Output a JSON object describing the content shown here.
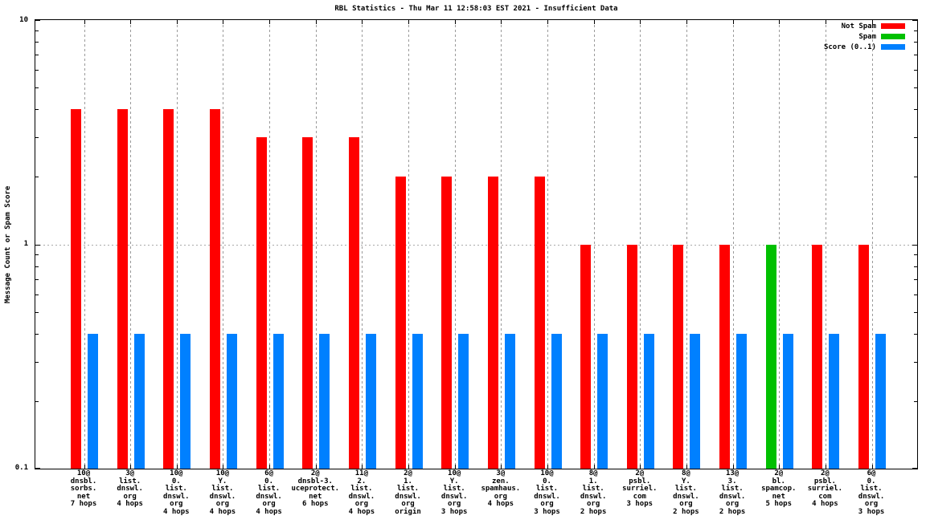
{
  "chart_data": {
    "type": "bar",
    "title": "RBL Statistics - Thu Mar 11 12:58:03 EST 2021 - Insufficient Data",
    "ylabel": "Message Count or Spam Score",
    "xlabel": "",
    "yscale": "log",
    "ylim": [
      0.1,
      10
    ],
    "ytick_labels": [
      "10",
      "1",
      "0.1"
    ],
    "grid": {
      "vertical": "dashed-at-each-group",
      "horizontal": "dotted-at-1"
    },
    "legend_position": "top-right-inside",
    "legend": [
      {
        "label": "Not Spam",
        "color": "#ff0000"
      },
      {
        "label": "Spam",
        "color": "#00c000"
      },
      {
        "label": "Score (0..1)",
        "color": "#0080ff"
      }
    ],
    "groups": [
      {
        "label_lines": [
          "10@",
          "dnsbl.",
          "sorbs.",
          "net",
          "7 hops"
        ],
        "not_spam": 4,
        "spam": 0,
        "score": 0.4
      },
      {
        "label_lines": [
          "3@",
          "list.",
          "dnswl.",
          "org",
          "4 hops"
        ],
        "not_spam": 4,
        "spam": 0,
        "score": 0.4
      },
      {
        "label_lines": [
          "10@",
          "0.",
          "list.",
          "dnswl.",
          "org",
          "4 hops"
        ],
        "not_spam": 4,
        "spam": 0,
        "score": 0.4
      },
      {
        "label_lines": [
          "10@",
          "Y.",
          "list.",
          "dnswl.",
          "org",
          "4 hops"
        ],
        "not_spam": 4,
        "spam": 0,
        "score": 0.4
      },
      {
        "label_lines": [
          "6@",
          "0.",
          "list.",
          "dnswl.",
          "org",
          "4 hops"
        ],
        "not_spam": 3,
        "spam": 0,
        "score": 0.4
      },
      {
        "label_lines": [
          "2@",
          "dnsbl-3.",
          "uceprotect.",
          "net",
          "6 hops"
        ],
        "not_spam": 3,
        "spam": 0,
        "score": 0.4
      },
      {
        "label_lines": [
          "11@",
          "2.",
          "list.",
          "dnswl.",
          "org",
          "4 hops"
        ],
        "not_spam": 3,
        "spam": 0,
        "score": 0.4
      },
      {
        "label_lines": [
          "2@",
          "1.",
          "list.",
          "dnswl.",
          "org",
          "origin"
        ],
        "not_spam": 2,
        "spam": 0,
        "score": 0.4
      },
      {
        "label_lines": [
          "10@",
          "Y.",
          "list.",
          "dnswl.",
          "org",
          "3 hops"
        ],
        "not_spam": 2,
        "spam": 0,
        "score": 0.4
      },
      {
        "label_lines": [
          "3@",
          "zen.",
          "spamhaus.",
          "org",
          "4 hops"
        ],
        "not_spam": 2,
        "spam": 0,
        "score": 0.4
      },
      {
        "label_lines": [
          "10@",
          "0.",
          "list.",
          "dnswl.",
          "org",
          "3 hops"
        ],
        "not_spam": 2,
        "spam": 0,
        "score": 0.4
      },
      {
        "label_lines": [
          "8@",
          "1.",
          "list.",
          "dnswl.",
          "org",
          "2 hops"
        ],
        "not_spam": 1,
        "spam": 0,
        "score": 0.4
      },
      {
        "label_lines": [
          "2@",
          "psbl.",
          "surriel.",
          "com",
          "3 hops"
        ],
        "not_spam": 1,
        "spam": 0,
        "score": 0.4
      },
      {
        "label_lines": [
          "8@",
          "Y.",
          "list.",
          "dnswl.",
          "org",
          "2 hops"
        ],
        "not_spam": 1,
        "spam": 0,
        "score": 0.4
      },
      {
        "label_lines": [
          "13@",
          "3.",
          "list.",
          "dnswl.",
          "org",
          "2 hops"
        ],
        "not_spam": 1,
        "spam": 0,
        "score": 0.4
      },
      {
        "label_lines": [
          "2@",
          "bl.",
          "spamcop.",
          "net",
          "5 hops"
        ],
        "not_spam": 0,
        "spam": 1,
        "score": 0.4
      },
      {
        "label_lines": [
          "2@",
          "psbl.",
          "surriel.",
          "com",
          "4 hops"
        ],
        "not_spam": 1,
        "spam": 0,
        "score": 0.4
      },
      {
        "label_lines": [
          "6@",
          "0.",
          "list.",
          "dnswl.",
          "org",
          "3 hops"
        ],
        "not_spam": 1,
        "spam": 0,
        "score": 0.4
      }
    ]
  }
}
